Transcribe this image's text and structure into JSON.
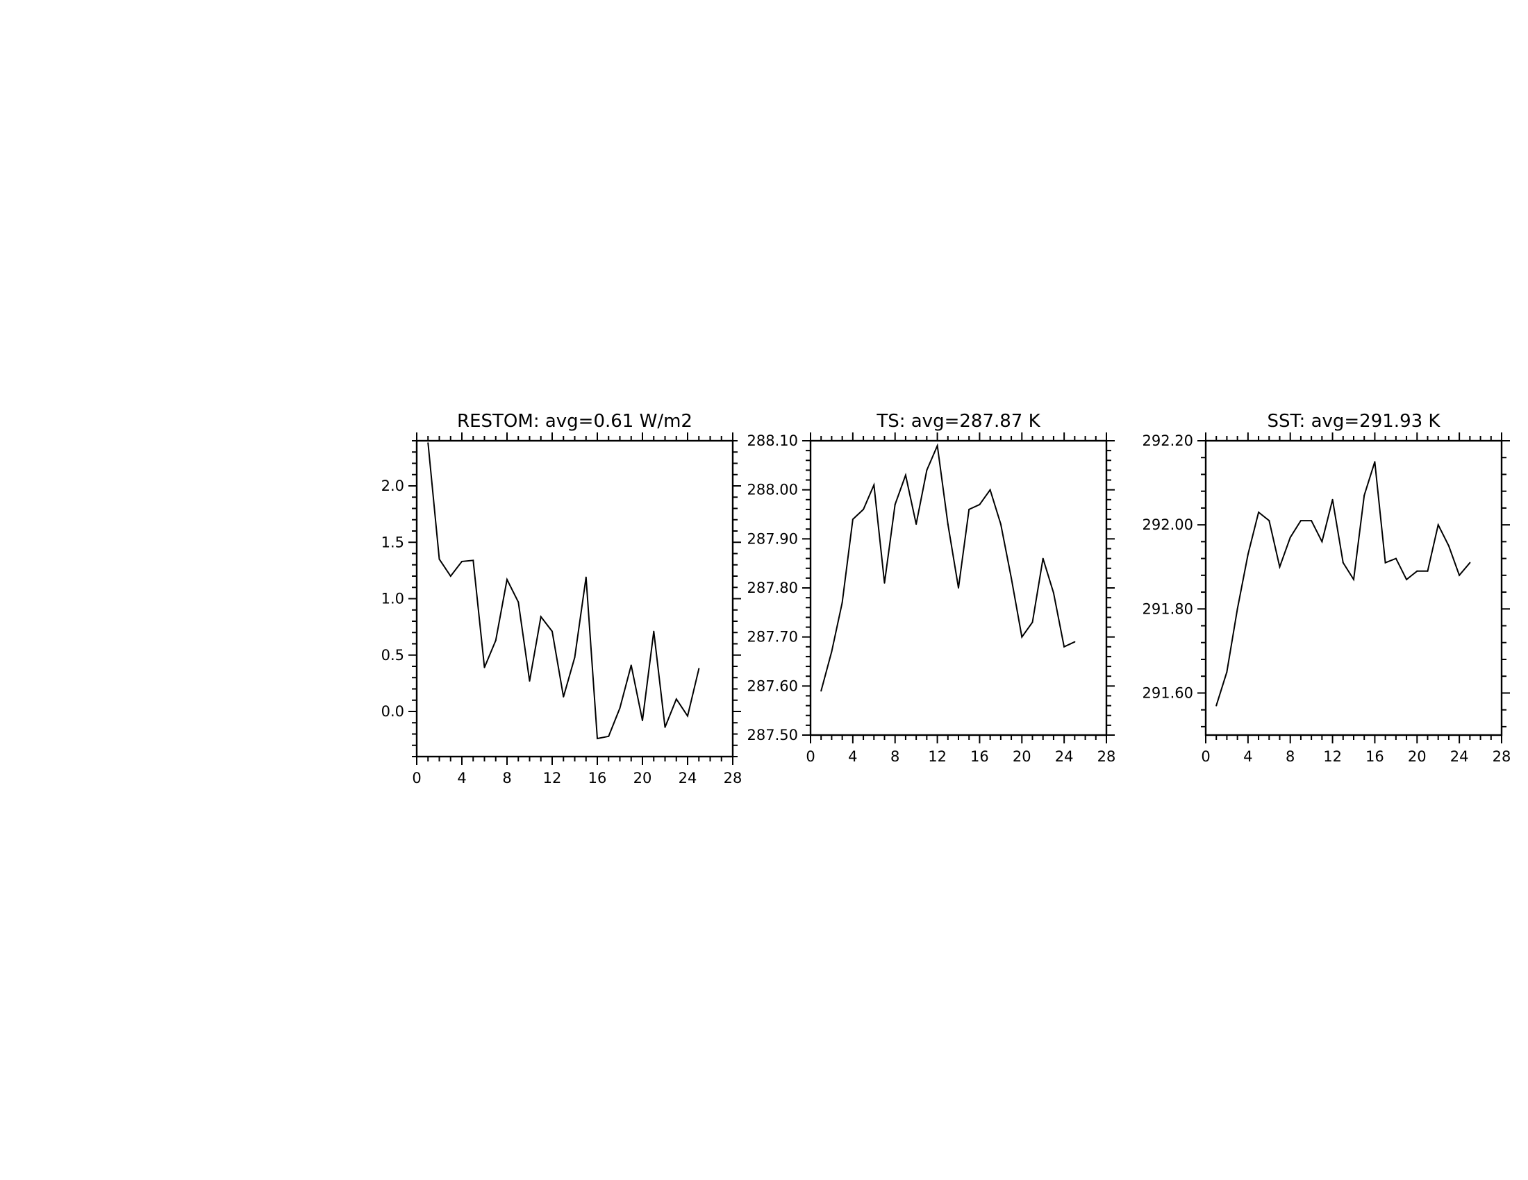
{
  "chart_data": [
    {
      "type": "line",
      "title": "RESTOM: avg=0.61 W/m2",
      "xlabel": "",
      "ylabel": "",
      "xlim": [
        0,
        28
      ],
      "ylim": [
        -0.4,
        2.4
      ],
      "x_ticks": [
        0,
        4,
        8,
        12,
        16,
        20,
        24,
        28
      ],
      "x_tick_labels": [
        "0",
        "4",
        "8",
        "12",
        "16",
        "20",
        "24",
        "28"
      ],
      "y_ticks": [
        0.0,
        0.5,
        1.0,
        1.5,
        2.0
      ],
      "y_tick_labels": [
        "0.0",
        "0.5",
        "1.0",
        "1.5",
        "2.0"
      ],
      "grid": false,
      "legend": "none",
      "line_color": "#000000",
      "x": [
        1,
        2,
        3,
        4,
        5,
        6,
        7,
        8,
        9,
        10,
        11,
        12,
        13,
        14,
        15,
        16,
        17,
        18,
        19,
        20,
        21,
        22,
        23,
        24,
        25
      ],
      "y": [
        2.38,
        1.35,
        1.2,
        1.33,
        1.34,
        0.39,
        0.63,
        1.17,
        0.97,
        0.27,
        0.84,
        0.71,
        0.13,
        0.48,
        1.19,
        -0.24,
        -0.22,
        0.03,
        0.41,
        -0.08,
        0.71,
        -0.14,
        0.11,
        -0.04,
        0.38
      ]
    },
    {
      "type": "line",
      "title": "TS: avg=287.87 K",
      "xlabel": "",
      "ylabel": "",
      "xlim": [
        0,
        28
      ],
      "ylim": [
        287.5,
        288.1
      ],
      "x_ticks": [
        0,
        4,
        8,
        12,
        16,
        20,
        24,
        28
      ],
      "x_tick_labels": [
        "0",
        "4",
        "8",
        "12",
        "16",
        "20",
        "24",
        "28"
      ],
      "y_ticks": [
        287.5,
        287.6,
        287.7,
        287.8,
        287.9,
        288.0,
        288.1
      ],
      "y_tick_labels": [
        "287.50",
        "287.60",
        "287.70",
        "287.80",
        "287.90",
        "288.00",
        "288.10"
      ],
      "grid": false,
      "legend": "none",
      "line_color": "#000000",
      "x": [
        1,
        2,
        3,
        4,
        5,
        6,
        7,
        8,
        9,
        10,
        11,
        12,
        13,
        14,
        15,
        16,
        17,
        18,
        19,
        20,
        21,
        22,
        23,
        24,
        25
      ],
      "y": [
        287.59,
        287.67,
        287.77,
        287.94,
        287.96,
        288.01,
        287.81,
        287.97,
        288.03,
        287.93,
        288.04,
        288.09,
        287.93,
        287.8,
        287.96,
        287.97,
        288.0,
        287.93,
        287.82,
        287.7,
        287.73,
        287.86,
        287.79,
        287.68,
        287.69
      ]
    },
    {
      "type": "line",
      "title": "SST: avg=291.93 K",
      "xlabel": "",
      "ylabel": "",
      "xlim": [
        0,
        28
      ],
      "ylim": [
        291.5,
        292.2
      ],
      "x_ticks": [
        0,
        4,
        8,
        12,
        16,
        20,
        24,
        28
      ],
      "x_tick_labels": [
        "0",
        "4",
        "8",
        "12",
        "16",
        "20",
        "24",
        "28"
      ],
      "y_ticks": [
        291.6,
        291.8,
        292.0,
        292.2
      ],
      "y_tick_labels": [
        "291.60",
        "291.80",
        "292.00",
        "292.20"
      ],
      "grid": false,
      "legend": "none",
      "line_color": "#000000",
      "x": [
        1,
        2,
        3,
        4,
        5,
        6,
        7,
        8,
        9,
        10,
        11,
        12,
        13,
        14,
        15,
        16,
        17,
        18,
        19,
        20,
        21,
        22,
        23,
        24,
        25
      ],
      "y": [
        291.57,
        291.65,
        291.8,
        291.93,
        292.03,
        292.01,
        291.9,
        291.97,
        292.01,
        292.01,
        291.96,
        292.06,
        291.91,
        291.87,
        292.07,
        292.15,
        291.91,
        291.92,
        291.87,
        291.89,
        291.89,
        292.0,
        291.95,
        291.88,
        291.91
      ]
    }
  ]
}
